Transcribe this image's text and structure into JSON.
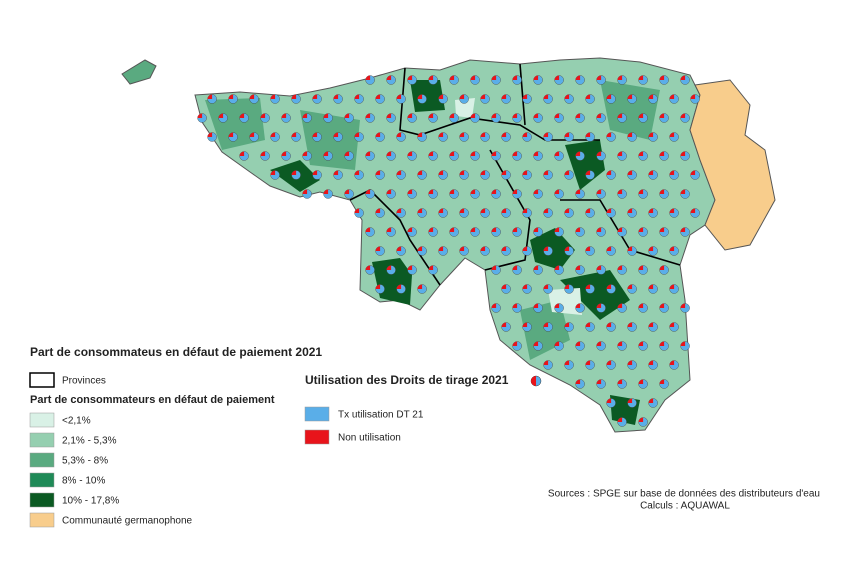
{
  "title": "Part de consommateus en défaut de paiement 2021",
  "provinces_label": "Provinces",
  "classes_title": "Part de consommateurs en défaut de paiement",
  "classes": [
    {
      "label": "<2,1%",
      "color": "#d9f1e6"
    },
    {
      "label": "2,1% - 5,3%",
      "color": "#95cfb0"
    },
    {
      "label": "5,3% - 8%",
      "color": "#5aaa80"
    },
    {
      "label": "8% - 10%",
      "color": "#1f8a57"
    },
    {
      "label": "10% - 17,8%",
      "color": "#0b5a23"
    },
    {
      "label": "Communauté germanophone",
      "color": "#f8cd8c"
    }
  ],
  "usage_title": "Utilisation des Droits de tirage 2021",
  "usage": [
    {
      "label": "Tx utilisation DT 21",
      "color": "#5aaee8"
    },
    {
      "label": "Non utilisation",
      "color": "#e8141b"
    }
  ],
  "sources": "Sources : SPGE sur base de données des distributeurs d'eau",
  "calculs": "Calculs : AQUAWAL"
}
